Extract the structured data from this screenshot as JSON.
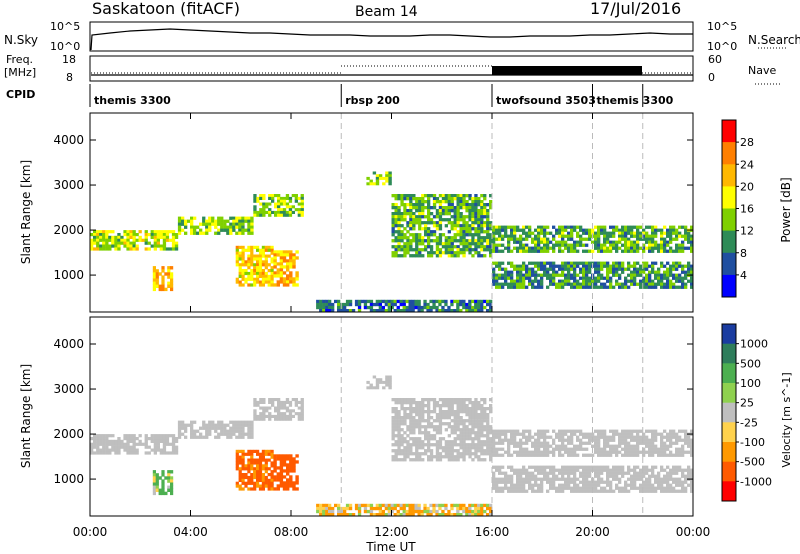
{
  "header": {
    "station": "Saskatoon (fitACF)",
    "beam": "Beam 14",
    "date": "17/Jul/2016"
  },
  "nsky_panel": {
    "left_label": "N.Sky",
    "left_ticks": [
      "10^5",
      "10^0"
    ],
    "right_ticks": [
      "10^5",
      "10^0"
    ],
    "right_label": "N.Search"
  },
  "freq_panel": {
    "left_label_1": "Freq.",
    "left_label_2": "[MHz]",
    "left_ticks": [
      "18",
      "8"
    ],
    "right_ticks": [
      "60",
      "0"
    ],
    "right_label": "Nave",
    "cpid_label": "CPID"
  },
  "cpid_segments": [
    {
      "label": "themis 3300",
      "start_hour": 0
    },
    {
      "label": "rbsp 200",
      "start_hour": 10
    },
    {
      "label": "twofsound 3503",
      "start_hour": 16
    },
    {
      "label": "themis 3300",
      "start_hour": 20
    },
    {
      "label": "",
      "start_hour": 22
    }
  ],
  "x_axis": {
    "label": "Time UT",
    "ticks": [
      "00:00",
      "04:00",
      "08:00",
      "12:00",
      "16:00",
      "20:00",
      "00:00"
    ],
    "range_hours": [
      0,
      24
    ]
  },
  "power_panel": {
    "ylabel": "Slant Range [km]",
    "yticks": [
      "4000",
      "3000",
      "2000",
      "1000"
    ],
    "ylim_km": [
      180,
      4600
    ],
    "colorbar_label": "Power [dB]",
    "colorbar_ticks": [
      "28",
      "24",
      "20",
      "16",
      "12",
      "8",
      "4"
    ],
    "colorbar_colors": [
      "#ff0000",
      "#ff7f00",
      "#ffb800",
      "#ffff00",
      "#7fd000",
      "#2e8b57",
      "#1f4fa0",
      "#0000ff"
    ]
  },
  "velocity_panel": {
    "ylabel": "Slant Range [km]",
    "yticks": [
      "4000",
      "3000",
      "2000",
      "1000"
    ],
    "ylim_km": [
      180,
      4600
    ],
    "colorbar_label": "Velocity [m s^-1]",
    "colorbar_ticks": [
      "1000",
      "500",
      "100",
      "25",
      "-25",
      "-100",
      "-500",
      "-1000"
    ],
    "colorbar_colors": [
      "#1a3ca0",
      "#2e7d5b",
      "#4caf50",
      "#8fd14f",
      "#bfbfbf",
      "#ffd24d",
      "#ff9900",
      "#ff5a00",
      "#ff0000"
    ]
  },
  "chart_data": {
    "type": "heatmap",
    "title": "Saskatoon (fitACF) Beam 14 17/Jul/2016",
    "xlabel": "Time UT",
    "ylabel": "Slant Range [km]",
    "xlim_hours": [
      0,
      24
    ],
    "ylim_km": [
      180,
      4600
    ],
    "echo_regions": [
      {
        "t0": 0.0,
        "t1": 3.5,
        "r0": 1550,
        "r1": 2000,
        "power_db": 16,
        "velocity": 0
      },
      {
        "t0": 3.5,
        "t1": 6.5,
        "r0": 1900,
        "r1": 2300,
        "power_db": 14,
        "velocity": 0
      },
      {
        "t0": 6.5,
        "t1": 8.5,
        "r0": 2300,
        "r1": 2800,
        "power_db": 14,
        "velocity": 0
      },
      {
        "t0": 2.5,
        "t1": 3.3,
        "r0": 650,
        "r1": 1200,
        "power_db": 22,
        "velocity": 150
      },
      {
        "t0": 5.8,
        "t1": 7.3,
        "r0": 750,
        "r1": 1650,
        "power_db": 20,
        "velocity": -600
      },
      {
        "t0": 7.3,
        "t1": 8.3,
        "r0": 750,
        "r1": 1550,
        "power_db": 22,
        "velocity": -800
      },
      {
        "t0": 11.0,
        "t1": 12.0,
        "r0": 3000,
        "r1": 3300,
        "power_db": 14,
        "velocity": 0
      },
      {
        "t0": 12.0,
        "t1": 16.0,
        "r0": 1400,
        "r1": 2800,
        "power_db": 12,
        "velocity": 0
      },
      {
        "t0": 16.0,
        "t1": 24.0,
        "r0": 1500,
        "r1": 2100,
        "power_db": 12,
        "velocity": 0
      },
      {
        "t0": 16.0,
        "t1": 24.0,
        "r0": 700,
        "r1": 1300,
        "power_db": 10,
        "velocity": 0
      },
      {
        "t0": 9.0,
        "t1": 16.0,
        "r0": 180,
        "r1": 450,
        "power_db": 8,
        "velocity": -100
      }
    ]
  }
}
